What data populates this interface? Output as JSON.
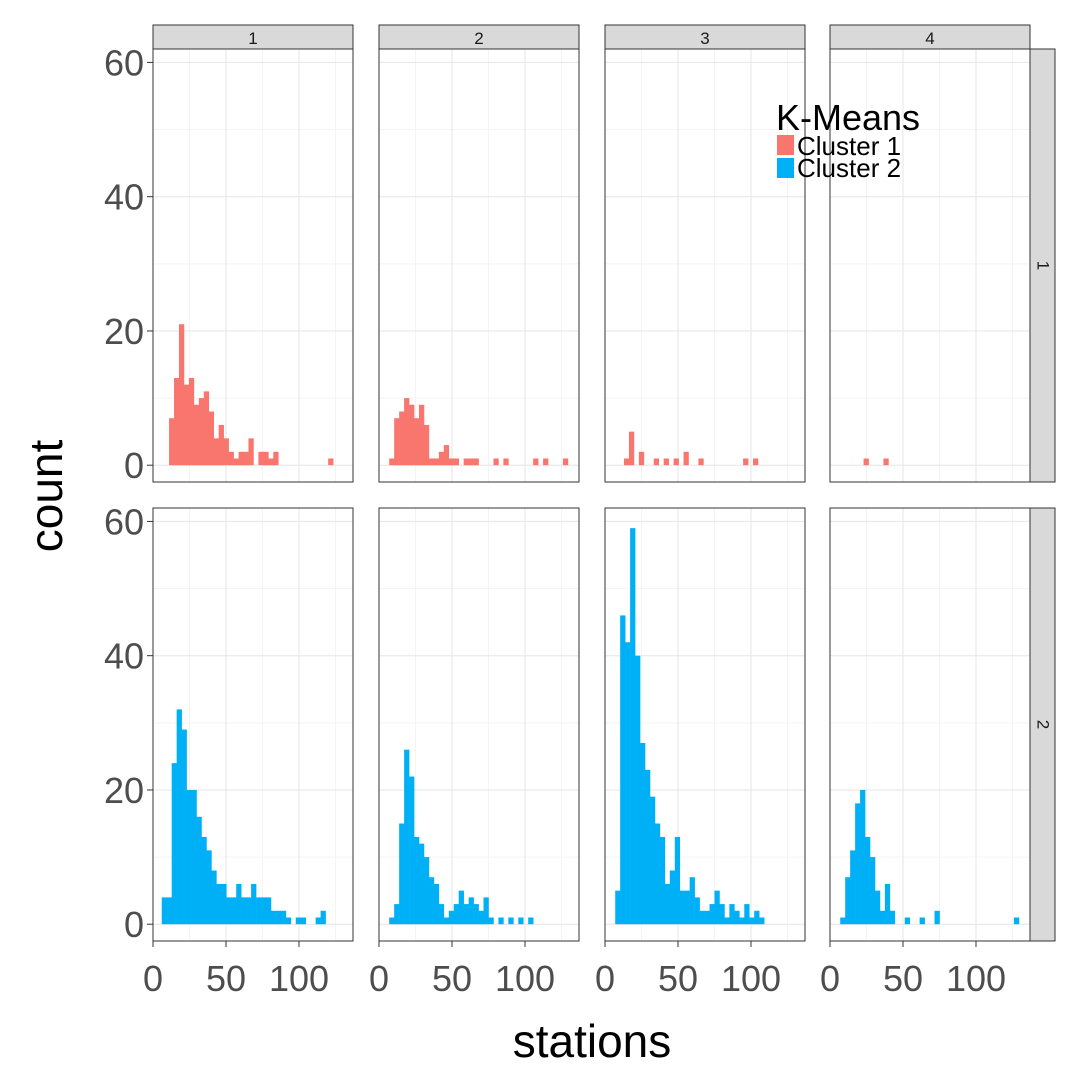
{
  "chart_data": {
    "type": "histogram",
    "layout": "facet_grid",
    "xlabel": "stations",
    "ylabel": "count",
    "xlim": [
      0,
      137
    ],
    "ylim": [
      -2.5,
      62
    ],
    "x_ticks": [
      0,
      50,
      100
    ],
    "y_ticks": [
      0,
      20,
      40,
      60
    ],
    "bin_width": 3.4,
    "grid": true,
    "col_facets": [
      "1",
      "2",
      "3",
      "4"
    ],
    "row_facets": [
      "1",
      "2"
    ],
    "legend": {
      "title": "K-Means",
      "position": "top-right",
      "entries": [
        {
          "label": "Cluster 1",
          "color": "#F8766D"
        },
        {
          "label": "Cluster 2",
          "color": "#00B0F6"
        }
      ]
    },
    "panels": [
      {
        "row": 0,
        "col": 0,
        "series": "Cluster 1",
        "color": "#F8766D",
        "bins": [
          [
            11,
            7
          ],
          [
            14.4,
            13
          ],
          [
            17.8,
            21
          ],
          [
            21.2,
            12
          ],
          [
            24.6,
            13
          ],
          [
            28,
            9
          ],
          [
            31.4,
            10
          ],
          [
            34.8,
            11
          ],
          [
            38.2,
            8
          ],
          [
            41.6,
            4
          ],
          [
            45,
            6
          ],
          [
            48.4,
            4
          ],
          [
            51.8,
            2
          ],
          [
            55.2,
            1
          ],
          [
            58.6,
            2
          ],
          [
            62,
            2
          ],
          [
            65.4,
            4
          ],
          [
            72.2,
            2
          ],
          [
            75.6,
            2
          ],
          [
            79,
            1
          ],
          [
            82.4,
            2
          ],
          [
            120,
            1
          ]
        ]
      },
      {
        "row": 0,
        "col": 1,
        "series": "Cluster 1",
        "color": "#F8766D",
        "bins": [
          [
            7,
            1
          ],
          [
            10.4,
            7
          ],
          [
            13.8,
            8
          ],
          [
            17.2,
            10
          ],
          [
            20.6,
            9
          ],
          [
            24,
            7
          ],
          [
            27.4,
            9
          ],
          [
            30.8,
            6
          ],
          [
            34.2,
            1
          ],
          [
            37.6,
            1
          ],
          [
            41,
            2
          ],
          [
            44.4,
            3
          ],
          [
            47.8,
            1
          ],
          [
            51.2,
            1
          ],
          [
            58,
            1
          ],
          [
            61.4,
            1
          ],
          [
            64.8,
            1
          ],
          [
            78.4,
            1
          ],
          [
            85.2,
            1
          ],
          [
            105.6,
            1
          ],
          [
            112.4,
            1
          ],
          [
            126,
            1
          ]
        ]
      },
      {
        "row": 0,
        "col": 2,
        "series": "Cluster 1",
        "color": "#F8766D",
        "bins": [
          [
            13,
            1
          ],
          [
            16.4,
            5
          ],
          [
            23.2,
            2
          ],
          [
            33.4,
            1
          ],
          [
            40.2,
            1
          ],
          [
            47,
            1
          ],
          [
            53.8,
            2
          ],
          [
            64,
            1
          ],
          [
            94.6,
            1
          ],
          [
            101.4,
            1
          ]
        ]
      },
      {
        "row": 0,
        "col": 3,
        "series": "Cluster 1",
        "color": "#F8766D",
        "bins": [
          [
            23,
            1
          ],
          [
            36.6,
            1
          ]
        ]
      },
      {
        "row": 1,
        "col": 0,
        "series": "Cluster 2",
        "color": "#00B0F6",
        "bins": [
          [
            6,
            4
          ],
          [
            9.4,
            4
          ],
          [
            12.8,
            24
          ],
          [
            16.2,
            32
          ],
          [
            19.6,
            29
          ],
          [
            23,
            20
          ],
          [
            26.4,
            20
          ],
          [
            29.8,
            16
          ],
          [
            33.2,
            13
          ],
          [
            36.6,
            11
          ],
          [
            40,
            8
          ],
          [
            43.4,
            6
          ],
          [
            46.8,
            6
          ],
          [
            50.2,
            4
          ],
          [
            53.6,
            4
          ],
          [
            57,
            6
          ],
          [
            60.4,
            4
          ],
          [
            63.8,
            4
          ],
          [
            67.2,
            6
          ],
          [
            70.6,
            4
          ],
          [
            74,
            4
          ],
          [
            77.4,
            4
          ],
          [
            80.8,
            2
          ],
          [
            84.2,
            2
          ],
          [
            87.6,
            2
          ],
          [
            91,
            1
          ],
          [
            97.8,
            1
          ],
          [
            101.2,
            1
          ],
          [
            111.4,
            1
          ],
          [
            114.8,
            2
          ]
        ]
      },
      {
        "row": 1,
        "col": 1,
        "series": "Cluster 2",
        "color": "#00B0F6",
        "bins": [
          [
            7,
            1
          ],
          [
            10.4,
            3
          ],
          [
            13.8,
            15
          ],
          [
            17.2,
            26
          ],
          [
            20.6,
            22
          ],
          [
            24,
            13
          ],
          [
            27.4,
            12
          ],
          [
            30.8,
            10
          ],
          [
            34.2,
            7
          ],
          [
            37.6,
            6
          ],
          [
            41,
            3
          ],
          [
            44.4,
            1
          ],
          [
            47.8,
            2
          ],
          [
            51.2,
            3
          ],
          [
            54.6,
            5
          ],
          [
            58,
            3
          ],
          [
            61.4,
            4
          ],
          [
            64.8,
            3
          ],
          [
            68.2,
            2
          ],
          [
            71.6,
            4
          ],
          [
            75,
            1
          ],
          [
            81.8,
            1
          ],
          [
            88.6,
            1
          ],
          [
            95.4,
            1
          ],
          [
            102.2,
            1
          ]
        ]
      },
      {
        "row": 1,
        "col": 2,
        "series": "Cluster 2",
        "color": "#00B0F6",
        "bins": [
          [
            7,
            5
          ],
          [
            10.4,
            46
          ],
          [
            13.8,
            42
          ],
          [
            17.2,
            59
          ],
          [
            20.6,
            40
          ],
          [
            24,
            27
          ],
          [
            27.4,
            23
          ],
          [
            30.8,
            19
          ],
          [
            34.2,
            15
          ],
          [
            37.6,
            13
          ],
          [
            41,
            6
          ],
          [
            44.4,
            8
          ],
          [
            47.8,
            13
          ],
          [
            51.2,
            5
          ],
          [
            54.6,
            5
          ],
          [
            58,
            7
          ],
          [
            61.4,
            4
          ],
          [
            64.8,
            2
          ],
          [
            68.2,
            2
          ],
          [
            71.6,
            3
          ],
          [
            75,
            5
          ],
          [
            78.4,
            3
          ],
          [
            81.8,
            1
          ],
          [
            85.2,
            3
          ],
          [
            88.6,
            2
          ],
          [
            92,
            1
          ],
          [
            95.4,
            3
          ],
          [
            98.8,
            1
          ],
          [
            102.2,
            2
          ],
          [
            105.6,
            1
          ]
        ]
      },
      {
        "row": 1,
        "col": 3,
        "series": "Cluster 2",
        "color": "#00B0F6",
        "bins": [
          [
            7,
            1
          ],
          [
            10.4,
            7
          ],
          [
            13.8,
            11
          ],
          [
            17.2,
            18
          ],
          [
            20.6,
            20
          ],
          [
            24,
            13
          ],
          [
            27.4,
            10
          ],
          [
            30.8,
            5
          ],
          [
            34.2,
            2
          ],
          [
            37.6,
            6
          ],
          [
            41,
            2
          ],
          [
            51.2,
            1
          ],
          [
            61.4,
            1
          ],
          [
            71.6,
            2
          ],
          [
            126,
            1
          ]
        ]
      }
    ]
  }
}
